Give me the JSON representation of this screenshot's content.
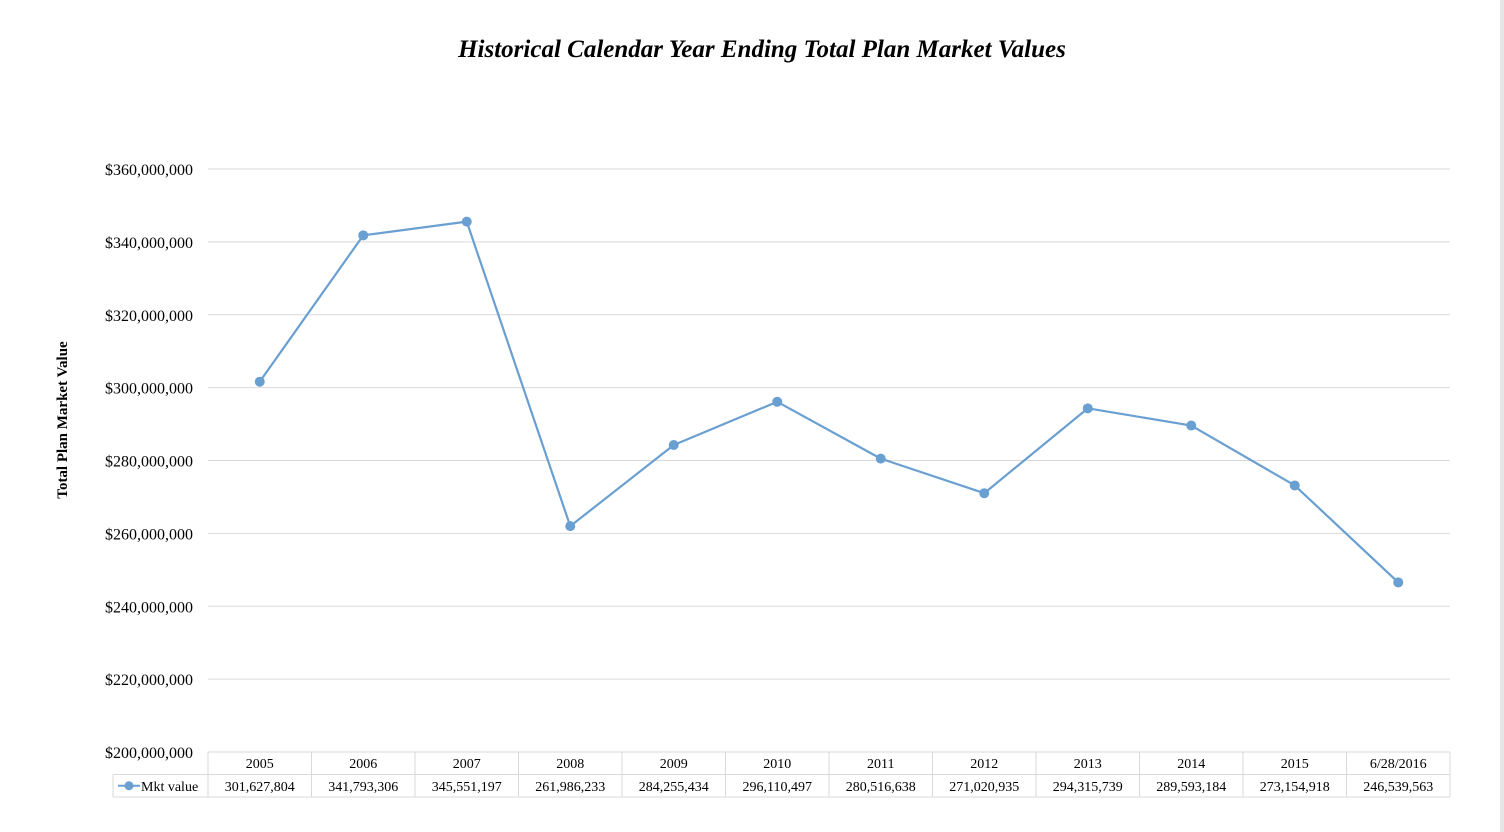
{
  "chart_data": {
    "type": "line",
    "title": "Historical Calendar Year Ending Total Plan Market Values",
    "ylabel": "Total Plan Market Value",
    "xlabel": "",
    "categories": [
      "2005",
      "2006",
      "2007",
      "2008",
      "2009",
      "2010",
      "2011",
      "2012",
      "2013",
      "2014",
      "2015",
      "6/28/2016"
    ],
    "series": [
      {
        "name": "Mkt value",
        "values": [
          301627804,
          341793306,
          345551197,
          261986233,
          284255434,
          296110497,
          280516638,
          271020935,
          294315739,
          289593184,
          273154918,
          246539563
        ],
        "value_labels": [
          "301,627,804",
          "341,793,306",
          "345,551,197",
          "261,986,233",
          "284,255,434",
          "296,110,497",
          "280,516,638",
          "271,020,935",
          "294,315,739",
          "289,593,184",
          "273,154,918",
          "246,539,563"
        ]
      }
    ],
    "ylim": [
      200000000,
      360000000
    ],
    "yticks": [
      200000000,
      220000000,
      240000000,
      260000000,
      280000000,
      300000000,
      320000000,
      340000000,
      360000000
    ],
    "ytick_labels": [
      "$200,000,000",
      "$220,000,000",
      "$240,000,000",
      "$260,000,000",
      "$280,000,000",
      "$300,000,000",
      "$320,000,000",
      "$340,000,000",
      "$360,000,000"
    ],
    "grid": true,
    "legend": "data-table",
    "data_table": true,
    "colors": {
      "series": "#6a9fd1",
      "grid": "#d9d9d9",
      "table_border": "#d9d9d9"
    }
  }
}
